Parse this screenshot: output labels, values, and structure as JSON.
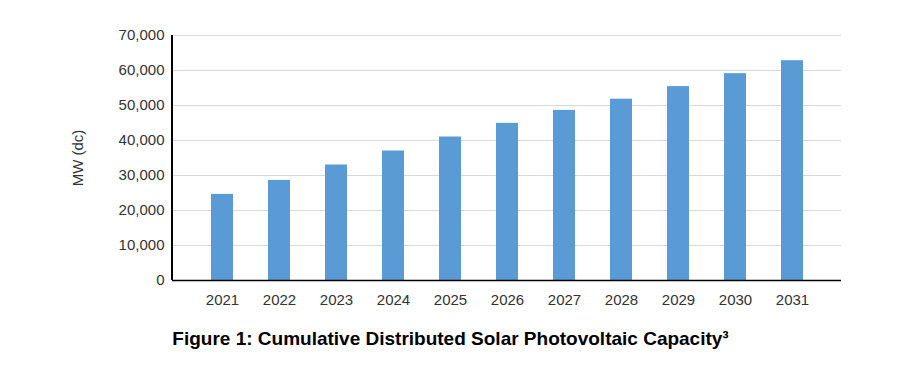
{
  "chart_data": {
    "type": "bar",
    "title": "Figure 1: Cumulative Distributed Solar Photovoltaic Capacity³",
    "y_label": "MW (dc)",
    "categories": [
      "2021",
      "2022",
      "2023",
      "2024",
      "2025",
      "2026",
      "2027",
      "2028",
      "2029",
      "2030",
      "2031"
    ],
    "values": [
      24600,
      28600,
      33000,
      37000,
      41000,
      44900,
      48600,
      51800,
      55400,
      59100,
      62800
    ],
    "color": "#5b9bd5",
    "ylim": [
      0,
      70000
    ],
    "yticks": [
      0,
      {
        "value": 10000,
        "label": "10,000"
      },
      {
        "value": 20000,
        "label": "20,000"
      },
      {
        "value": 30000,
        "label": "30,000"
      },
      {
        "value": 40000,
        "label": "40,000"
      },
      {
        "value": 50000,
        "label": "50,000"
      },
      {
        "value": 60000,
        "label": "60,000"
      },
      {
        "value": 70000,
        "label": "70,000"
      }
    ],
    "grid": true
  }
}
